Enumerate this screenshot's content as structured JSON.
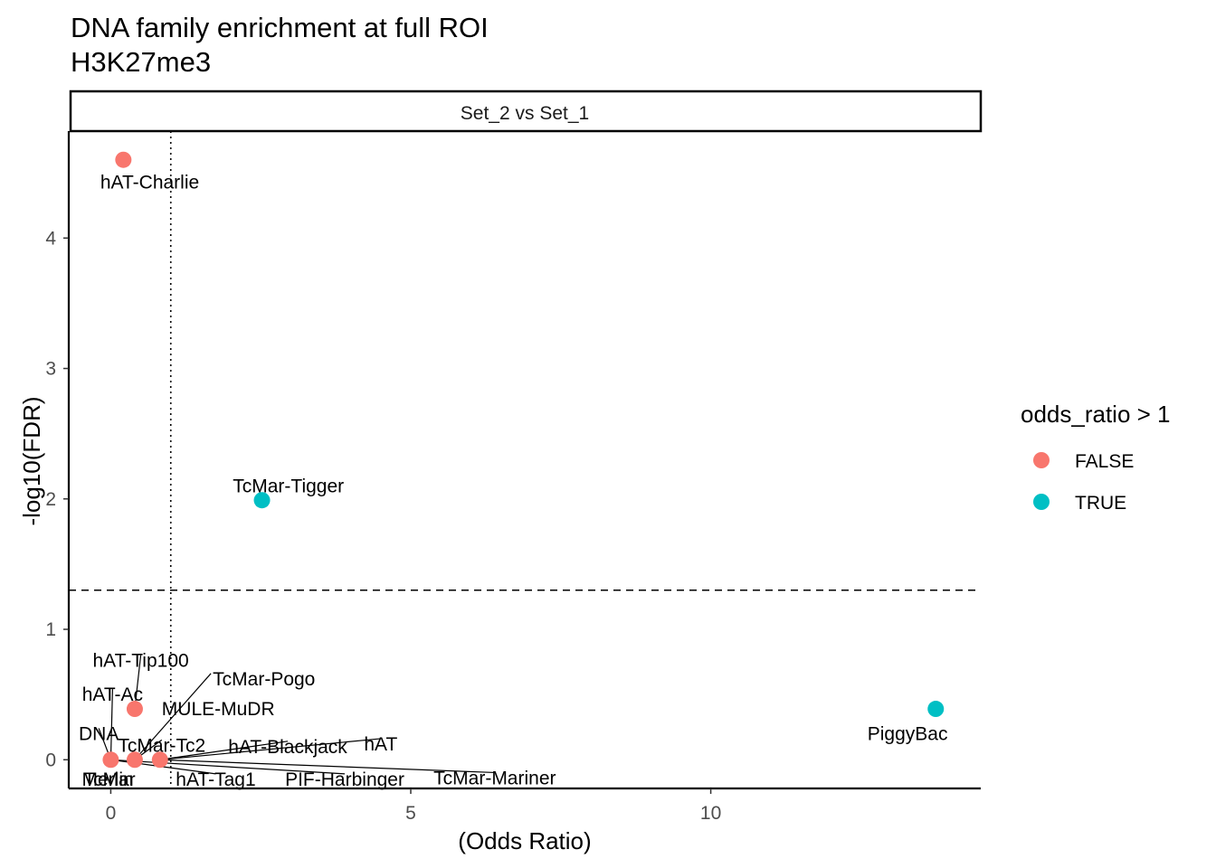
{
  "title_line1": "DNA family enrichment at full ROI",
  "title_line2": "H3K27me3",
  "facet_label": "Set_2 vs Set_1",
  "colors": {
    "false": "#F8766D",
    "true": "#00BFC4",
    "axis": "#000000",
    "tick_text": "#4D4D4D"
  },
  "legend": {
    "title": "odds_ratio > 1",
    "items": [
      {
        "label": "FALSE",
        "color": "#F8766D"
      },
      {
        "label": "TRUE",
        "color": "#00BFC4"
      }
    ]
  },
  "chart_data": {
    "type": "scatter",
    "title": "DNA family enrichment at full ROI\nH3K27me3",
    "xlabel": "(Odds Ratio)",
    "ylabel": "-log10(FDR)",
    "xlim": [
      -0.7,
      14.5
    ],
    "ylim": [
      -0.22,
      4.82
    ],
    "xticks": [
      0,
      5,
      10
    ],
    "yticks": [
      0,
      1,
      2,
      3,
      4
    ],
    "vline": 1,
    "hline": 1.3,
    "grid": false,
    "legend_position": "right",
    "points": [
      {
        "label": "hAT-Charlie",
        "x": 0.21,
        "y": 4.6,
        "group": "FALSE"
      },
      {
        "label": "TcMar-Tigger",
        "x": 2.52,
        "y": 1.99,
        "group": "TRUE"
      },
      {
        "label": "PiggyBac",
        "x": 13.75,
        "y": 0.39,
        "group": "TRUE"
      },
      {
        "label": "MULE-MuDR",
        "x": 0.4,
        "y": 0.39,
        "group": "FALSE"
      },
      {
        "label": "hAT-Tip100",
        "x": 0.4,
        "y": 0.39,
        "group": "FALSE"
      },
      {
        "label": "hAT-Ac",
        "x": 0.0,
        "y": 0.0,
        "group": "FALSE"
      },
      {
        "label": "DNA",
        "x": 0.0,
        "y": 0.0,
        "group": "FALSE"
      },
      {
        "label": "TcMar-Pogo",
        "x": 0.4,
        "y": 0.0,
        "group": "FALSE"
      },
      {
        "label": "TcMar-Tc2",
        "x": 0.4,
        "y": 0.0,
        "group": "FALSE"
      },
      {
        "label": "hAT-Blackjack",
        "x": 0.82,
        "y": 0.0,
        "group": "FALSE"
      },
      {
        "label": "hAT",
        "x": 0.82,
        "y": 0.0,
        "group": "FALSE"
      },
      {
        "label": "hAT-Tag1",
        "x": 0.0,
        "y": 0.0,
        "group": "FALSE"
      },
      {
        "label": "PIF-Harbinger",
        "x": 0.0,
        "y": 0.0,
        "group": "FALSE"
      },
      {
        "label": "TcMar-Mariner",
        "x": 0.82,
        "y": 0.0,
        "group": "FALSE"
      },
      {
        "label": "Merlin",
        "x": 0.0,
        "y": 0.0,
        "group": "FALSE"
      },
      {
        "label": "TcMar",
        "x": 0.0,
        "y": 0.0,
        "group": "FALSE"
      }
    ]
  }
}
